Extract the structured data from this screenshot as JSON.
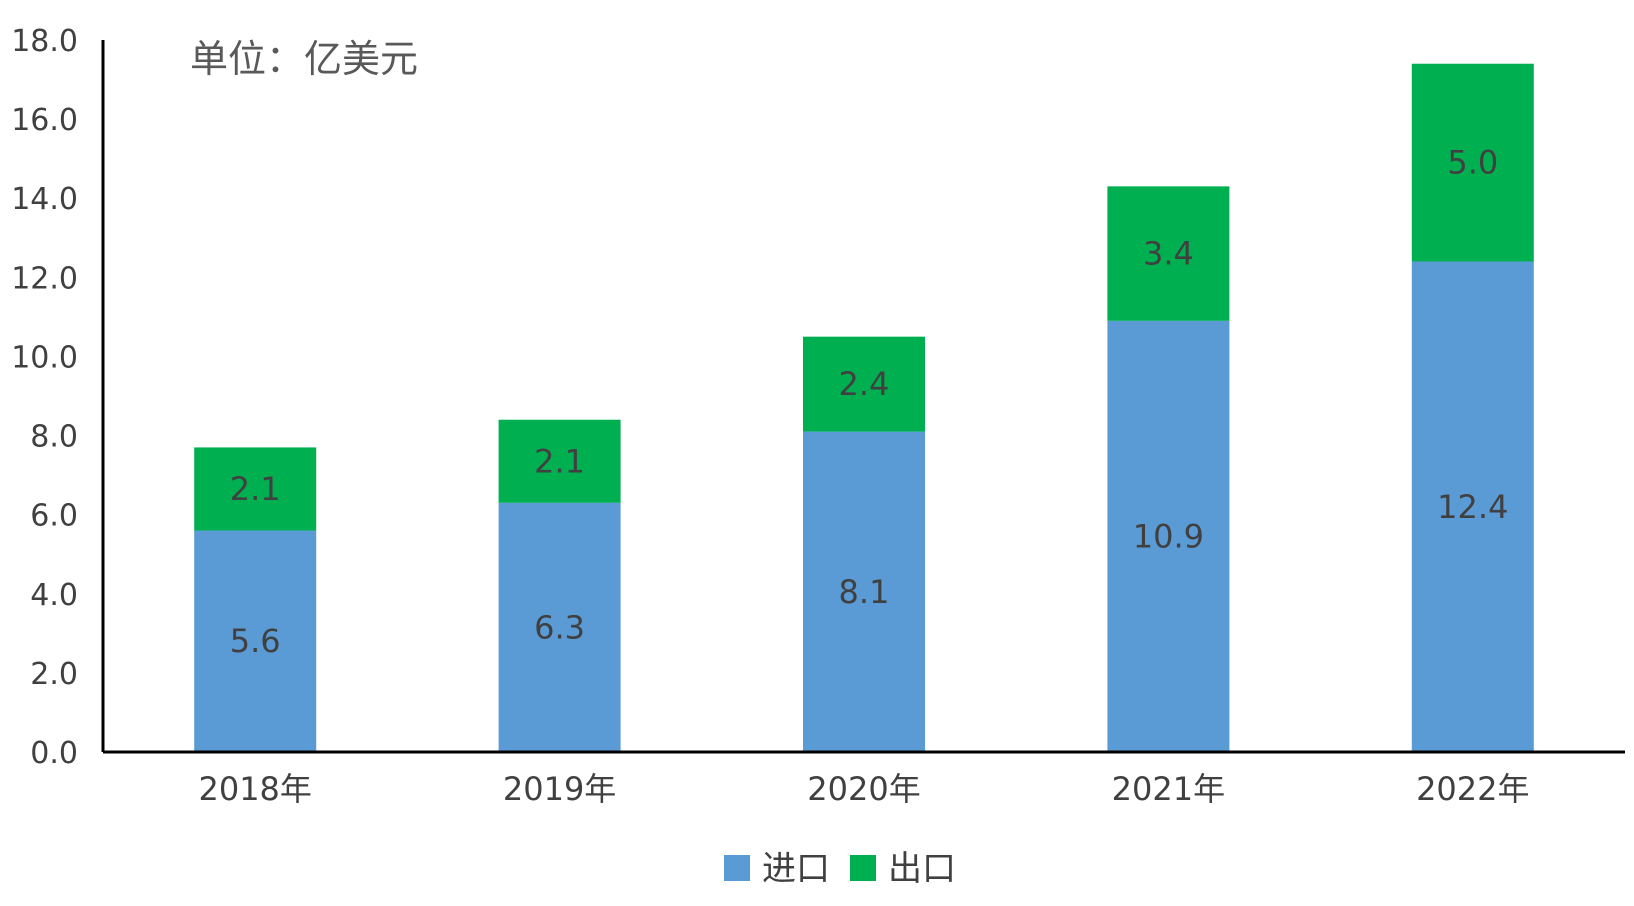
{
  "chart_data": {
    "type": "bar",
    "stacked": true,
    "unit_text": "单位：亿美元",
    "categories": [
      "2018年",
      "2019年",
      "2020年",
      "2021年",
      "2022年"
    ],
    "series": [
      {
        "name": "进口",
        "color": "#5B9BD5",
        "values": [
          5.6,
          6.3,
          8.1,
          10.9,
          12.4
        ]
      },
      {
        "name": "出口",
        "color": "#00B050",
        "values": [
          2.1,
          2.1,
          2.4,
          3.4,
          5.0
        ]
      }
    ],
    "ylim": [
      0,
      18
    ],
    "y_ticks": [
      "0.0",
      "2.0",
      "4.0",
      "6.0",
      "8.0",
      "10.0",
      "12.0",
      "14.0",
      "16.0",
      "18.0"
    ],
    "grid": false,
    "legend_position": "bottom",
    "axis_color": "#000000"
  }
}
